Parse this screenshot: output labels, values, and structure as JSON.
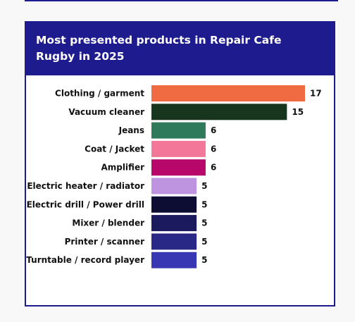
{
  "card": {
    "title": "Most presented products in Repair Cafe Rugby in 2025"
  },
  "chart_data": {
    "type": "bar",
    "orientation": "horizontal",
    "title": "Most presented products in Repair Cafe Rugby in 2025",
    "xlabel": "",
    "ylabel": "",
    "categories": [
      "Clothing / garment",
      "Vacuum cleaner",
      "Jeans",
      "Coat / Jacket",
      "Amplifier",
      "Electric heater / radiator",
      "Electric drill / Power drill",
      "Mixer / blender",
      "Printer / scanner",
      "Turntable / record player"
    ],
    "values": [
      17,
      15,
      6,
      6,
      6,
      5,
      5,
      5,
      5,
      5
    ],
    "colors": [
      "#f06a42",
      "#17361d",
      "#2e7a5a",
      "#f37799",
      "#b8076a",
      "#be93e0",
      "#0d0d33",
      "#1c1a5e",
      "#2a2886",
      "#3836b2"
    ],
    "xlim": [
      0,
      17
    ],
    "grid": false,
    "legend": "none",
    "data_labels": true
  }
}
